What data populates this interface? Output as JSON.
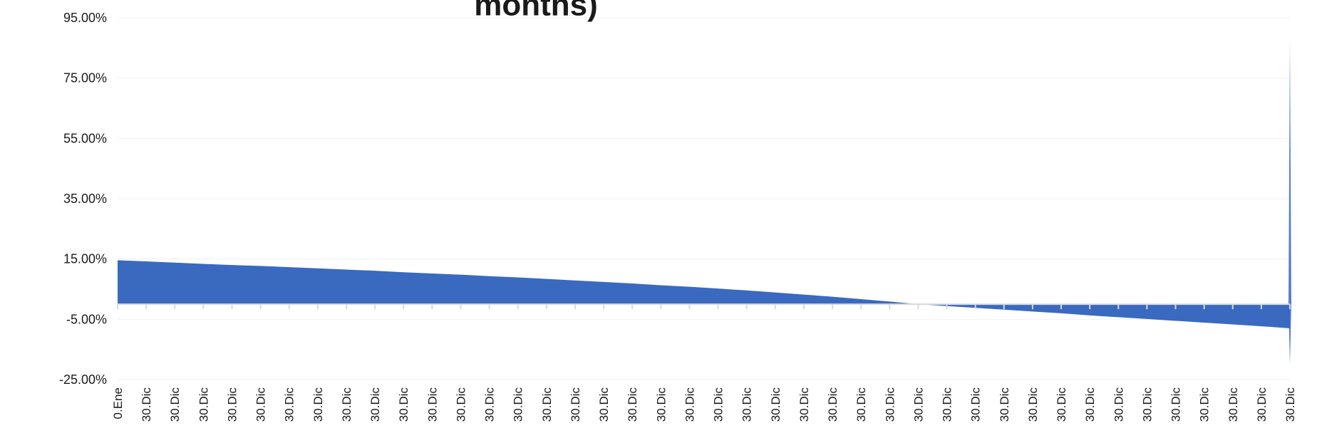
{
  "chart_data": {
    "type": "area",
    "title": "months)",
    "xlabel": "",
    "ylabel": "",
    "y_ticks": [
      "95.00%",
      "75.00%",
      "55.00%",
      "35.00%",
      "15.00%",
      "-5.00%",
      "-25.00%"
    ],
    "ylim": [
      -25,
      95
    ],
    "grid": true,
    "legend": "none",
    "categories": [
      "0.Ene",
      "30.Dic",
      "30.Dic",
      "30.Dic",
      "30.Dic",
      "30.Dic",
      "30.Dic",
      "30.Dic",
      "30.Dic",
      "30.Dic",
      "30.Dic",
      "30.Dic",
      "30.Dic",
      "30.Dic",
      "30.Dic",
      "30.Dic",
      "30.Dic",
      "30.Dic",
      "30.Dic",
      "30.Dic",
      "30.Dic",
      "30.Dic",
      "30.Dic",
      "30.Dic",
      "30.Dic",
      "30.Dic",
      "30.Dic",
      "30.Dic",
      "30.Dic",
      "30.Dic",
      "30.Dic",
      "30.Dic",
      "30.Dic",
      "30.Dic",
      "30.Dic",
      "30.Dic",
      "30.Dic",
      "30.Dic",
      "30.Dic",
      "30.Dic",
      "30.Dic",
      "30.Dic"
    ],
    "series": [
      {
        "values": [
          14.6,
          14.2,
          13.8,
          13.4,
          13.0,
          12.7,
          12.3,
          11.9,
          11.5,
          11.1,
          10.6,
          10.2,
          9.8,
          9.3,
          8.9,
          8.4,
          7.9,
          7.4,
          6.9,
          6.3,
          5.8,
          5.2,
          4.6,
          3.9,
          3.2,
          2.5,
          1.7,
          0.9,
          0.0,
          -0.6,
          -1.2,
          -1.8,
          -2.4,
          -3.0,
          -3.7,
          -4.3,
          -4.9,
          -5.5,
          -6.1,
          -6.7,
          -7.3,
          -8.0
        ],
        "spike": 87.0,
        "color": "#3a69c0"
      }
    ]
  }
}
